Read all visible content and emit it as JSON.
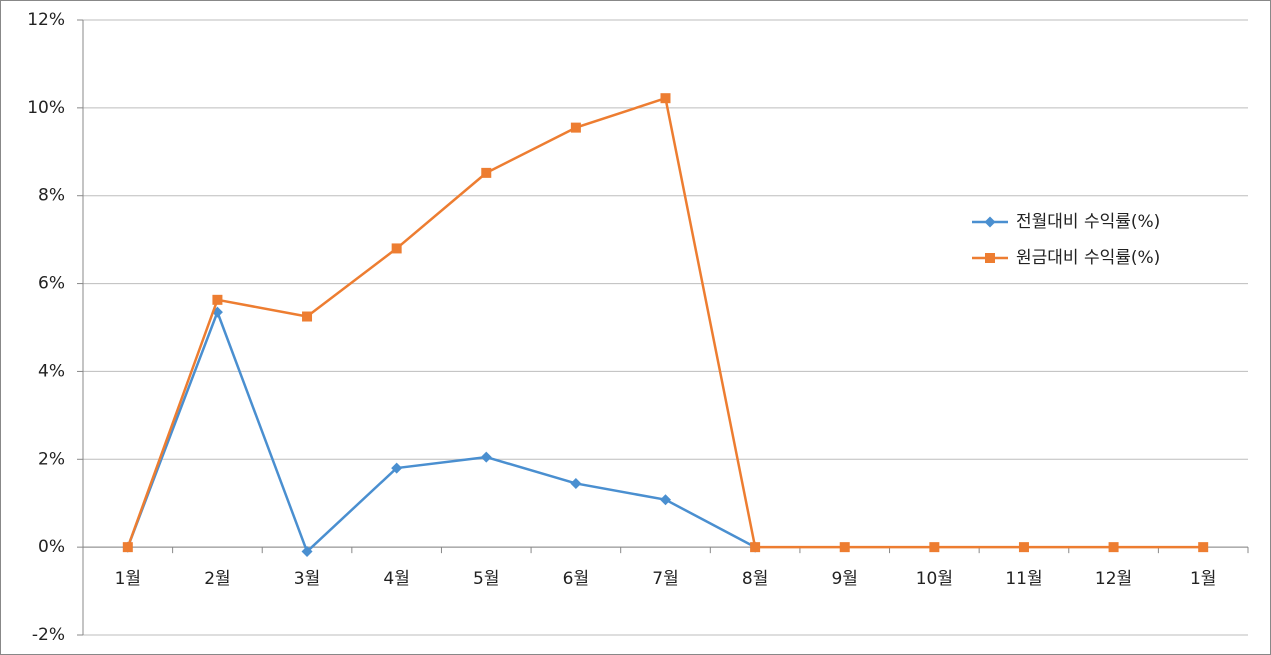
{
  "chart_data": {
    "type": "line",
    "categories": [
      "1월",
      "2월",
      "3월",
      "4월",
      "5월",
      "6월",
      "7월",
      "8월",
      "9월",
      "10월",
      "11월",
      "12월",
      "1월"
    ],
    "series": [
      {
        "name": "전월대비 수익률(%)",
        "color": "#4a8fd0",
        "marker": "diamond",
        "values": [
          0,
          5.35,
          -0.1,
          1.8,
          2.05,
          1.45,
          1.08,
          0,
          null,
          null,
          null,
          null,
          null
        ]
      },
      {
        "name": "원금대비 수익률(%)",
        "color": "#ed7d31",
        "marker": "square",
        "values": [
          0,
          5.63,
          5.25,
          6.8,
          8.52,
          9.55,
          10.22,
          0,
          0,
          0,
          0,
          0,
          0
        ]
      }
    ],
    "ylim": [
      -2,
      12
    ],
    "yticks": [
      {
        "value": -2,
        "label": "-2%"
      },
      {
        "value": 0,
        "label": "0%"
      },
      {
        "value": 2,
        "label": "2%"
      },
      {
        "value": 4,
        "label": "4%"
      },
      {
        "value": 6,
        "label": "6%"
      },
      {
        "value": 8,
        "label": "8%"
      },
      {
        "value": 10,
        "label": "10%"
      },
      {
        "value": 12,
        "label": "12%"
      }
    ],
    "grid": true,
    "legend": "right"
  }
}
